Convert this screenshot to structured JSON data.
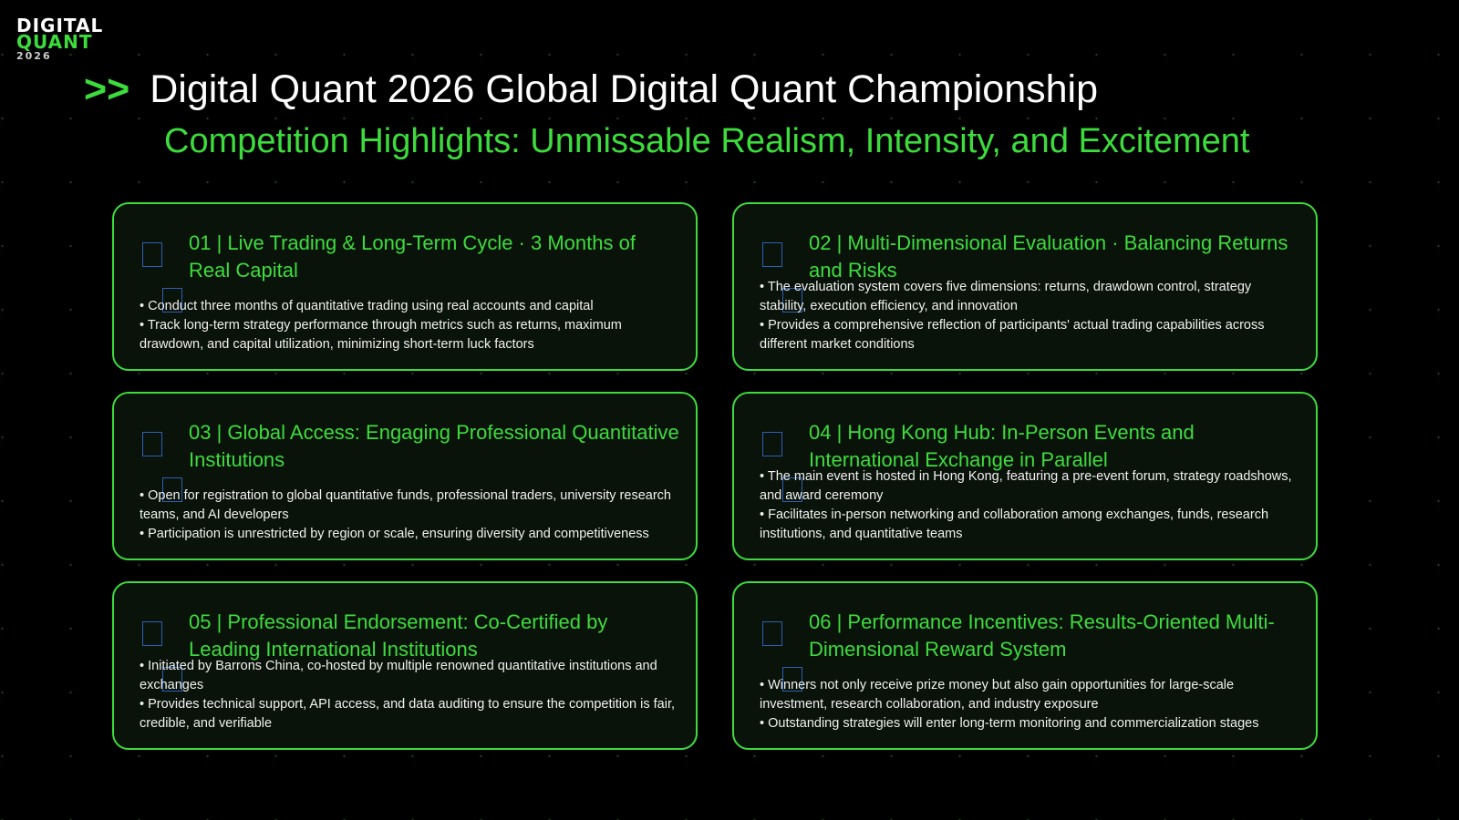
{
  "logo": {
    "line1": "DIGITAL",
    "line2": "QUANT",
    "line3": "2026"
  },
  "header": {
    "arrow": ">>",
    "title": "Digital Quant 2026 Global Digital Quant Championship",
    "subtitle": "Competition Highlights: Unmissable Realism, Intensity, and Excitement"
  },
  "colors": {
    "accent": "#3ddc3d",
    "background": "#000000",
    "card": "#0a130a"
  },
  "cards": [
    {
      "title": "01 | Live Trading & Long-Term Cycle · 3 Months of Real Capital",
      "bullets": [
        "• Conduct three months of quantitative trading using real accounts and capital",
        "• Track long-term strategy performance through metrics such as returns, maximum drawdown, and capital utilization, minimizing short-term luck factors"
      ]
    },
    {
      "title": "02 | Multi-Dimensional Evaluation · Balancing Returns and Risks",
      "bullets": [
        "• The evaluation system covers five dimensions: returns, drawdown control, strategy stability, execution efficiency, and innovation",
        "• Provides a comprehensive reflection of participants' actual trading capabilities across different market conditions"
      ]
    },
    {
      "title": "03 | Global Access: Engaging Professional Quantitative Institutions",
      "bullets": [
        "• Open for registration to global quantitative funds, professional traders, university research teams, and AI developers",
        "• Participation is unrestricted by region or scale, ensuring diversity and competitiveness"
      ]
    },
    {
      "title": "04 | Hong Kong Hub: In-Person Events and International Exchange in Parallel",
      "bullets": [
        "• The main event is hosted in Hong Kong, featuring a pre-event forum, strategy roadshows, and award ceremony",
        "• Facilitates in-person networking and collaboration among exchanges, funds, research institutions, and quantitative teams"
      ]
    },
    {
      "title": "05 | Professional Endorsement: Co-Certified by Leading International Institutions",
      "bullets": [
        "• Initiated by Barrons China, co-hosted by multiple renowned quantitative institutions and exchanges",
        "• Provides technical support, API access, and data auditing to ensure the competition is fair, credible, and verifiable"
      ]
    },
    {
      "title": "06 | Performance Incentives: Results-Oriented Multi-Dimensional Reward System",
      "bullets": [
        "• Winners not only receive prize money but also gain opportunities for large-scale investment, research collaboration, and industry exposure",
        "• Outstanding strategies will enter long-term monitoring and commercialization stages"
      ]
    }
  ]
}
